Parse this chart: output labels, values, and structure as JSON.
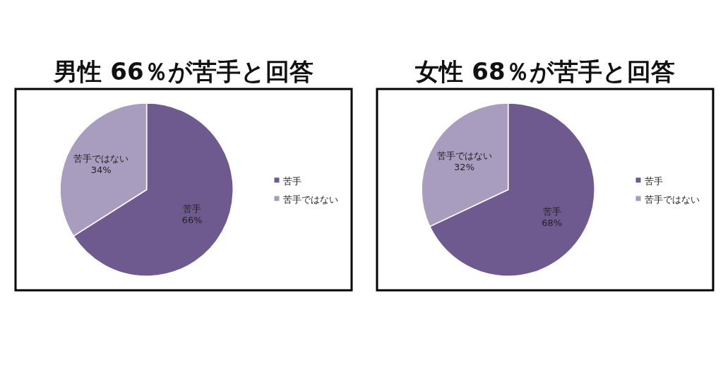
{
  "chart_data": [
    {
      "type": "pie",
      "title": "男性 66％が苦手と回答",
      "categories": [
        "苦手",
        "苦手ではない"
      ],
      "values": [
        66,
        34
      ],
      "colors": [
        "#6e5a8e",
        "#a89cbf"
      ],
      "value_labels": [
        "苦手\n66%",
        "苦手ではない\n34%"
      ],
      "legend": "right"
    },
    {
      "type": "pie",
      "title": "女性 68％が苦手と回答",
      "categories": [
        "苦手",
        "苦手ではない"
      ],
      "values": [
        68,
        32
      ],
      "colors": [
        "#6e5a8e",
        "#a89cbf"
      ],
      "value_labels": [
        "苦手\n68%",
        "苦手ではない\n32%"
      ],
      "legend": "right"
    }
  ]
}
